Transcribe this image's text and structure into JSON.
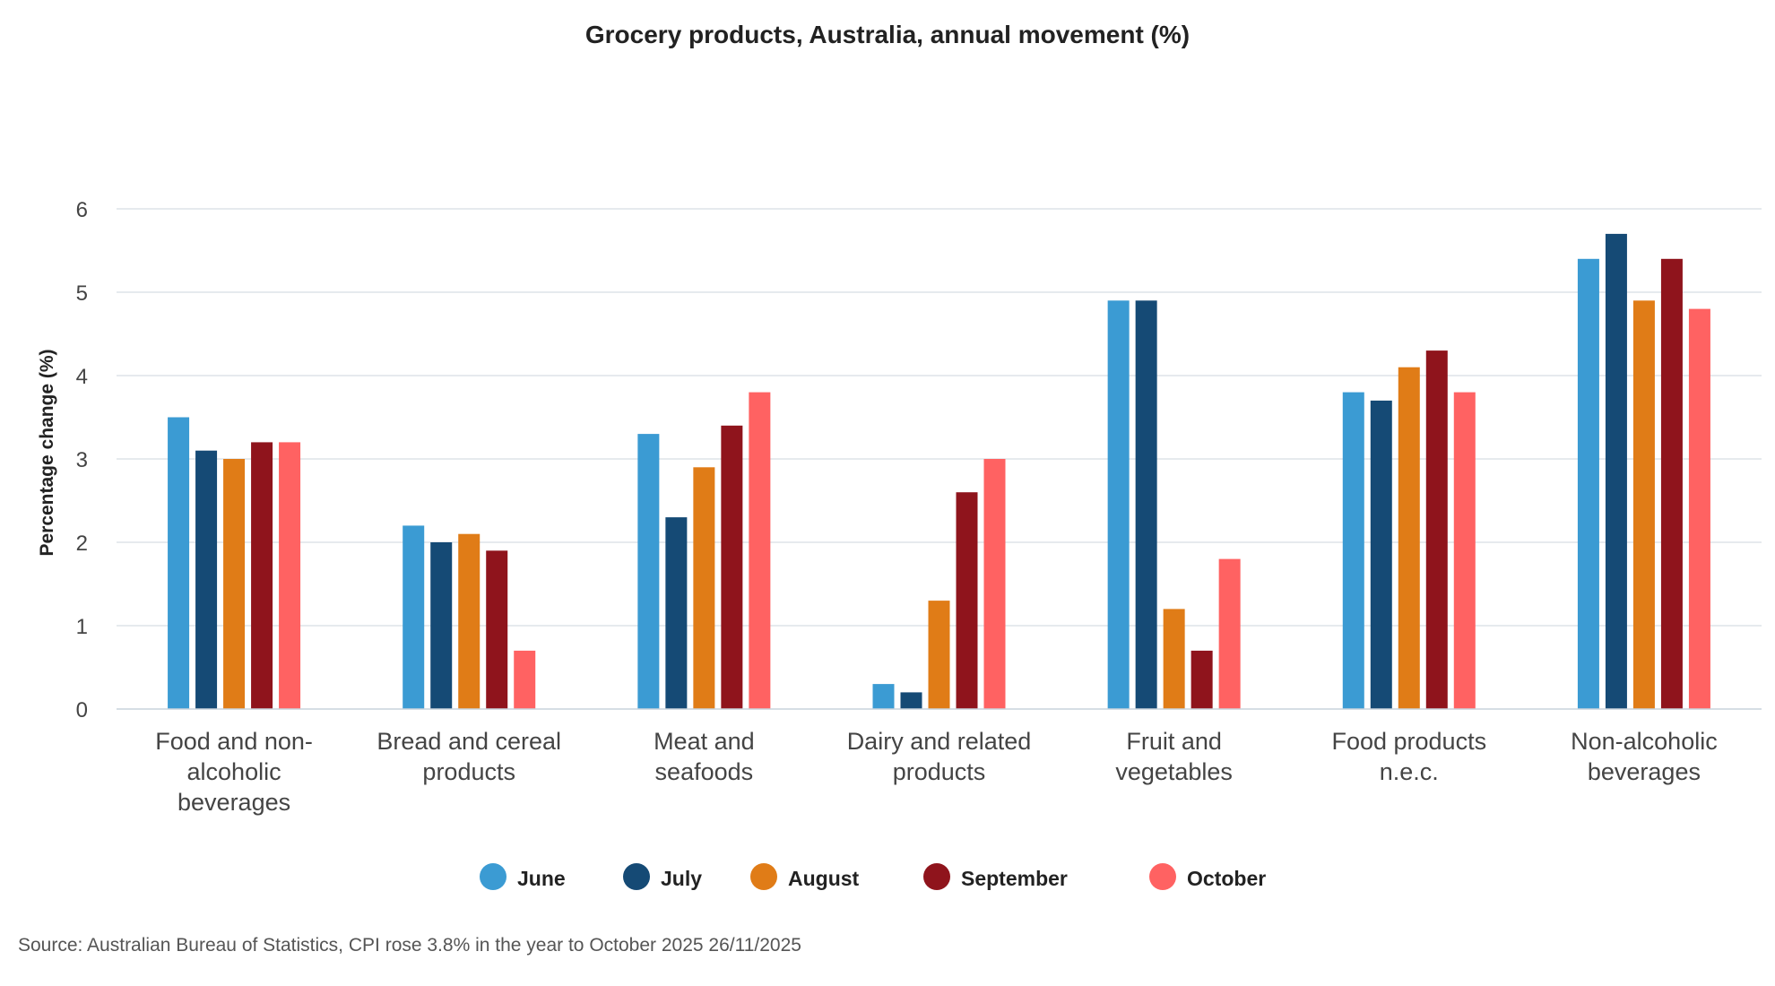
{
  "chart_data": {
    "type": "bar",
    "title": "Grocery products, Australia, annual movement (%)",
    "xlabel": "",
    "ylabel": "Percentage change (%)",
    "ylim": [
      0,
      6
    ],
    "yticks": [
      "0",
      "1",
      "2",
      "3",
      "4",
      "5",
      "6"
    ],
    "grid": true,
    "legend_position": "bottom",
    "categories": [
      [
        "Food and non-",
        "alcoholic",
        "beverages"
      ],
      [
        "Bread and cereal",
        "products"
      ],
      [
        "Meat and",
        "seafoods"
      ],
      [
        "Dairy and related",
        "products"
      ],
      [
        "Fruit and",
        "vegetables"
      ],
      [
        "Food products",
        "n.e.c."
      ],
      [
        "Non-alcoholic",
        "beverages"
      ]
    ],
    "series": [
      {
        "name": "June",
        "color": "#3b9bd3",
        "values": [
          3.5,
          2.2,
          3.3,
          0.3,
          4.9,
          3.8,
          5.4
        ]
      },
      {
        "name": "July",
        "color": "#154a75",
        "values": [
          3.1,
          2.0,
          2.3,
          0.2,
          4.9,
          3.7,
          5.7
        ]
      },
      {
        "name": "August",
        "color": "#e07c17",
        "values": [
          3.0,
          2.1,
          2.9,
          1.3,
          1.2,
          4.1,
          4.9
        ]
      },
      {
        "name": "September",
        "color": "#8f141c",
        "values": [
          3.2,
          1.9,
          3.4,
          2.6,
          0.7,
          4.3,
          5.4
        ]
      },
      {
        "name": "October",
        "color": "#ff6262",
        "values": [
          3.2,
          0.7,
          3.8,
          3.0,
          1.8,
          3.8,
          4.8
        ]
      }
    ],
    "source": "Source: Australian Bureau of Statistics, CPI rose 3.8% in the year to October 2025 26/11/2025"
  }
}
